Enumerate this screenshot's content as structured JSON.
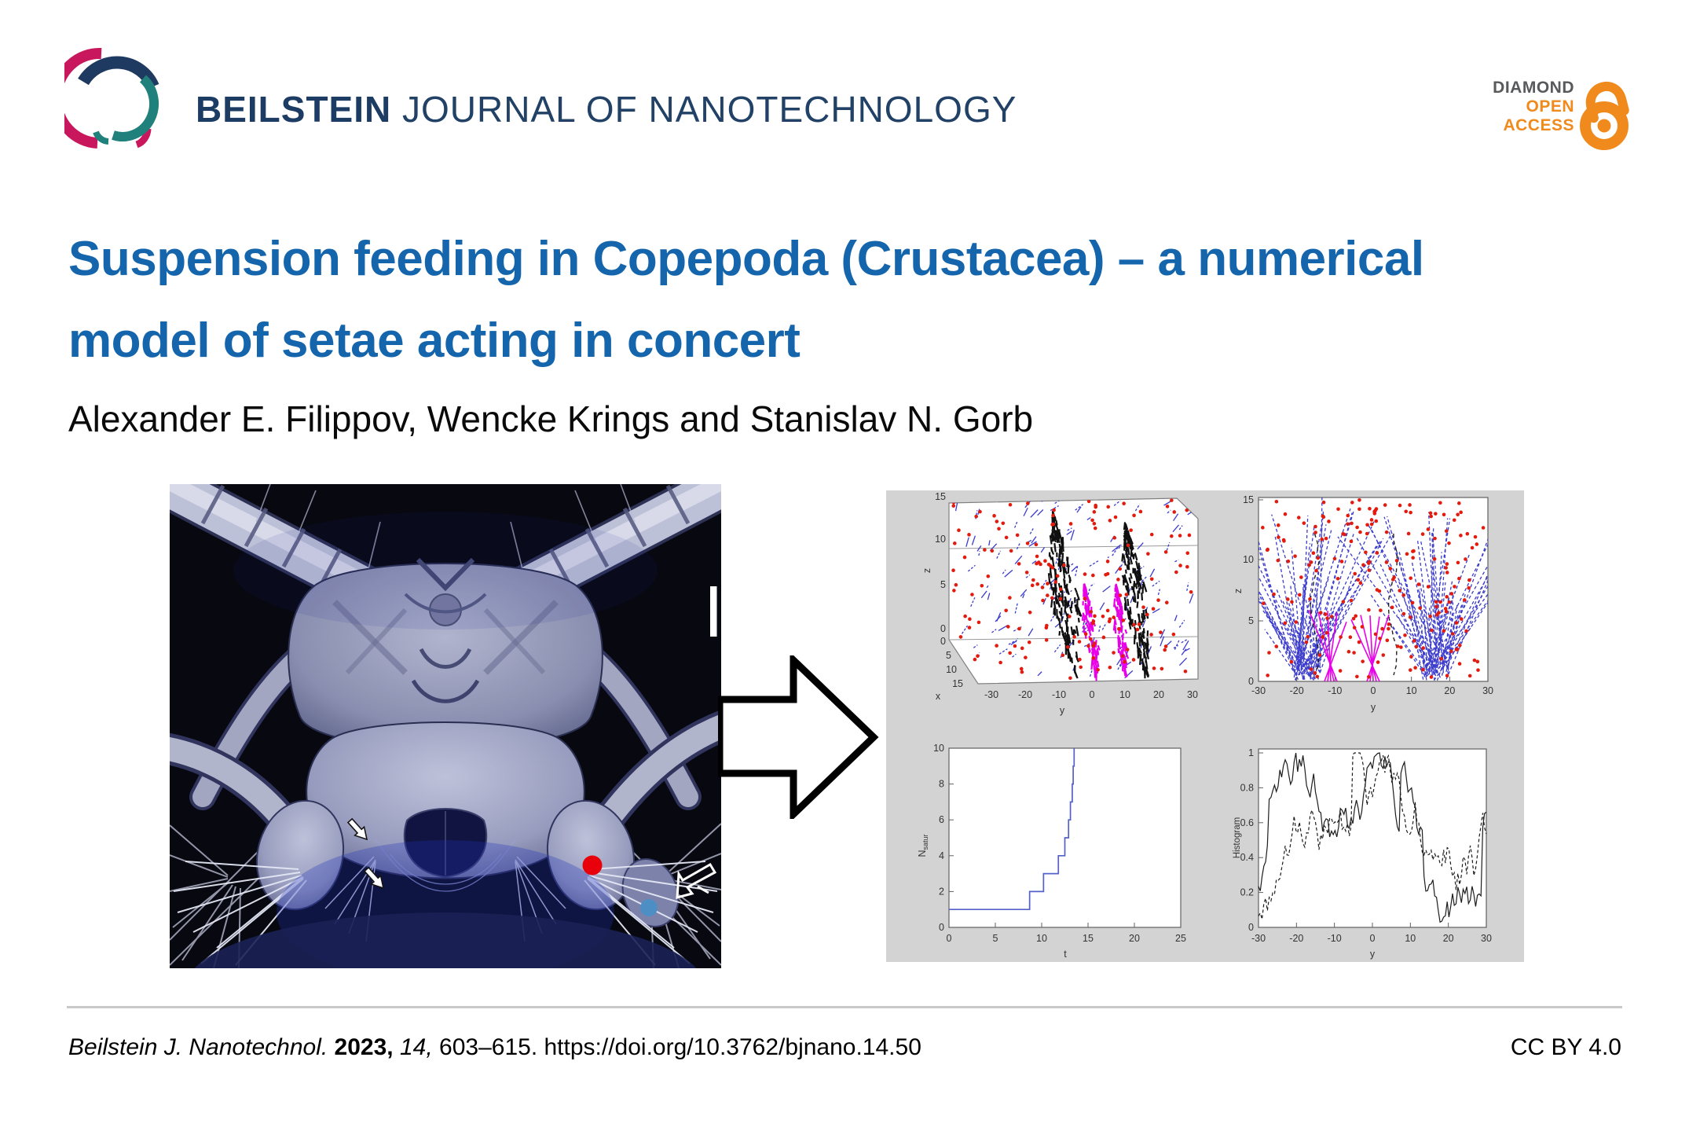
{
  "header": {
    "journal_bold": "BEILSTEIN",
    "journal_rest": "JOURNAL OF NANOTECHNOLOGY",
    "oa": {
      "line1": "DIAMOND",
      "line2": "OPEN",
      "line3": "ACCESS"
    }
  },
  "title": {
    "line1": "Suspension feeding in Copepoda (Crustacea) – a numerical",
    "line2": "model of setae acting in concert"
  },
  "authors": "Alexander E. Filippov, Wencke Krings and Stanislav N. Gorb",
  "figure": {
    "panel_bg": "#d3d3d3",
    "red_marker_color": "#e8000b",
    "blue_marker_color": "#4d8fc4",
    "annotation_white": "#ffffff",
    "annotation_outline": "#141414",
    "arrow_fill": "#ffffff",
    "arrow_outline": "#000000",
    "scalebar_color": "#ffffff"
  },
  "chart_data": [
    {
      "id": "setae-3d-view",
      "type": "scatter",
      "projection": "3d",
      "xlabel": "y",
      "ylabel": "z",
      "depth_label": "x",
      "x_ticks": [
        "-30",
        "-20",
        "-10",
        "0",
        "10",
        "20",
        "30"
      ],
      "z_ticks": [
        "15",
        "10",
        "5",
        "0"
      ],
      "depth_ticks": [
        "0",
        "5",
        "10",
        "15"
      ],
      "xlim": [
        -30,
        30
      ],
      "zlim": [
        0,
        15
      ],
      "grid": true,
      "series": [
        {
          "name": "particles",
          "marker": "dot",
          "color": "#e31a0e",
          "count": 170
        },
        {
          "name": "particle-trajectories",
          "marker": "dash",
          "color": "#3c3ccd",
          "count": 160
        },
        {
          "name": "setae-bundles-black",
          "color": "#101010",
          "count": 2
        },
        {
          "name": "setae-bundles-magenta",
          "color": "#e800e8",
          "count": 2
        }
      ],
      "seed": 7
    },
    {
      "id": "setae-side-view",
      "type": "scatter",
      "projection": "2d",
      "xlabel": "y",
      "ylabel": "z",
      "x_ticks": [
        "-30",
        "-20",
        "-10",
        "0",
        "10",
        "20",
        "30"
      ],
      "y_ticks": [
        "0",
        "5",
        "10",
        "15"
      ],
      "xlim": [
        -30,
        30
      ],
      "ylim": [
        0,
        15
      ],
      "series": [
        {
          "name": "particles",
          "marker": "dot",
          "color": "#e31a0e",
          "count": 210
        },
        {
          "name": "setae-fans-blue",
          "marker": "dash",
          "color": "#3c3ccd",
          "count": 110
        },
        {
          "name": "setae-black-dashed",
          "color": "#202020",
          "count": 2
        },
        {
          "name": "setae-magenta",
          "color": "#e800e8",
          "count": 2
        }
      ],
      "seed": 13
    },
    {
      "id": "saturation-curve",
      "type": "line",
      "line_style": "step",
      "xlabel": "t",
      "ylabel": "N",
      "ylabel_sub": "satur",
      "x_ticks": [
        "0",
        "5",
        "10",
        "15",
        "20",
        "25"
      ],
      "y_ticks": [
        "0",
        "2",
        "4",
        "6",
        "8",
        "10"
      ],
      "xlim": [
        0,
        25
      ],
      "ylim": [
        0,
        10
      ],
      "color": "#5560c8",
      "points": [
        [
          0,
          1
        ],
        [
          8.7,
          1
        ],
        [
          8.7,
          2
        ],
        [
          10.2,
          2
        ],
        [
          10.2,
          3
        ],
        [
          11.8,
          3
        ],
        [
          11.8,
          4
        ],
        [
          12.5,
          4
        ],
        [
          12.5,
          5
        ],
        [
          12.9,
          5
        ],
        [
          12.9,
          6
        ],
        [
          13.1,
          6
        ],
        [
          13.1,
          7
        ],
        [
          13.3,
          7
        ],
        [
          13.3,
          8
        ],
        [
          13.4,
          8
        ],
        [
          13.4,
          9
        ],
        [
          13.5,
          9
        ],
        [
          13.5,
          10
        ]
      ]
    },
    {
      "id": "capture-histogram",
      "type": "line",
      "xlabel": "y",
      "ylabel": "Histogram",
      "x_ticks": [
        "-30",
        "-20",
        "-10",
        "0",
        "10",
        "20",
        "30"
      ],
      "y_ticks": [
        "0",
        "0.2",
        "0.4",
        "0.6",
        "0.8",
        "1"
      ],
      "xlim": [
        -30,
        30
      ],
      "ylim": [
        0,
        1
      ],
      "series": [
        {
          "name": "histogram-solid",
          "dash": "",
          "color": "#1d1d1d"
        },
        {
          "name": "histogram-dashed",
          "dash": "4 3",
          "color": "#1d1d1d"
        }
      ],
      "seed": 21
    }
  ],
  "footer": {
    "journal": "Beilstein J. Nanotechnol.",
    "year": "2023,",
    "volume": "14,",
    "pages_doi": "603–615. https://doi.org/10.3762/bjnano.14.50",
    "license": "CC BY 4.0"
  }
}
